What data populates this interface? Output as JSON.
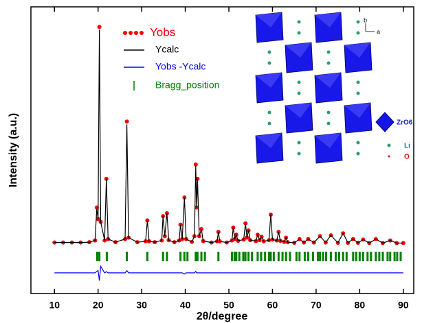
{
  "chart_data": {
    "type": "rietveld",
    "xlabel": "2θ/degree",
    "ylabel": "Intensity (a.u.)",
    "xlim": [
      4.6,
      92.4
    ],
    "ylim": [
      0,
      100
    ],
    "xticks": [
      10,
      20,
      30,
      40,
      50,
      60,
      70,
      80,
      90
    ],
    "x": [
      10,
      12,
      14,
      16,
      18,
      19.3,
      19.7,
      20.0,
      20.3,
      20.6,
      21.5,
      21.9,
      22.3,
      24,
      26.2,
      26.6,
      27.0,
      29,
      30.9,
      31.3,
      31.7,
      33,
      34.6,
      34.9,
      35.3,
      35.8,
      36.2,
      37.5,
      38.6,
      38.9,
      39.3,
      39.8,
      40.2,
      41.5,
      42.1,
      42.4,
      42.6,
      42.8,
      43.2,
      43.7,
      44.1,
      46,
      47.3,
      47.6,
      47.9,
      49.5,
      50.7,
      51.0,
      51.35,
      51.7,
      52.1,
      53.4,
      53.8,
      54.15,
      54.5,
      54.9,
      56.2,
      56.6,
      57.05,
      57.5,
      58,
      59.2,
      59.6,
      60,
      61.0,
      61.4,
      61.8,
      62.7,
      63.1,
      63.5,
      65,
      66.2,
      67.2,
      68.2,
      69.5,
      70.9,
      72.2,
      73.4,
      75,
      76.2,
      77.3,
      78.5,
      79.6,
      80.8,
      82.2,
      83.7,
      85.3,
      87.0,
      88.5,
      90
    ],
    "series": [
      {
        "name": "Yobs",
        "color": "#ff0000",
        "style": "dots",
        "values": [
          17.8,
          17.8,
          17.8,
          17.8,
          17.9,
          18.5,
          30,
          26,
          93,
          25,
          18.5,
          40,
          19,
          17.9,
          19,
          60,
          19.5,
          17.9,
          18.2,
          25.5,
          18.2,
          17.9,
          18.5,
          27,
          20,
          28,
          18.6,
          17.9,
          18.5,
          24,
          19,
          33.5,
          19,
          18,
          20,
          45,
          30,
          40,
          20,
          22.5,
          18.3,
          17.8,
          18.2,
          21.5,
          18.2,
          17.8,
          18.5,
          23,
          19,
          20.5,
          18.4,
          18.8,
          24.5,
          19.5,
          22,
          18.6,
          18.3,
          20.5,
          18.6,
          19.8,
          18.2,
          18.6,
          27.5,
          18.8,
          18.5,
          21.5,
          18.4,
          18,
          19.5,
          17.9,
          17.7,
          19,
          17.8,
          19,
          17.8,
          20,
          17.8,
          20.3,
          17.7,
          21,
          17.7,
          19,
          17.7,
          18.8,
          17.6,
          19,
          17.6,
          18.5,
          17.6,
          17.6
        ]
      },
      {
        "name": "Ycalc",
        "color": "#000000",
        "style": "line",
        "values": [
          17.8,
          17.8,
          17.8,
          17.8,
          17.9,
          18.5,
          29.5,
          26,
          92,
          25,
          18.5,
          40,
          19,
          17.9,
          19,
          59,
          19.5,
          17.9,
          18.2,
          25.5,
          18.2,
          17.9,
          18.5,
          27,
          20,
          28,
          18.6,
          17.9,
          18.5,
          24,
          19,
          33.5,
          19,
          18,
          20,
          44.5,
          30,
          40,
          20,
          22.5,
          18.3,
          17.8,
          18.2,
          21.5,
          18.2,
          17.8,
          18.5,
          23,
          19,
          20.5,
          18.4,
          18.8,
          24.5,
          19.5,
          22,
          18.6,
          18.3,
          20.5,
          18.6,
          19.8,
          18.2,
          18.6,
          27.5,
          18.8,
          18.5,
          21.5,
          18.4,
          18,
          19.5,
          17.9,
          17.7,
          19,
          17.8,
          19,
          17.8,
          20,
          17.8,
          20.3,
          17.7,
          21,
          17.7,
          19,
          17.7,
          18.8,
          17.6,
          19,
          17.6,
          18.5,
          17.6,
          17.6
        ]
      },
      {
        "name": "Yobs -Ycalc",
        "color": "#0000ff",
        "style": "line",
        "values": [
          7.2,
          7.2,
          7.2,
          7.2,
          7.2,
          7.2,
          7.7,
          8,
          4.5,
          9.5,
          7.2,
          7.6,
          7.2,
          7.2,
          7.2,
          8,
          7.2,
          7.2,
          7.2,
          7.2,
          7.2,
          7.2,
          7.2,
          7.2,
          7.2,
          7.2,
          7.2,
          7.2,
          7.2,
          7.2,
          7.2,
          6.8,
          7.2,
          7.2,
          7.2,
          7.7,
          7.2,
          7.2,
          7.2,
          7.2,
          7.2,
          7.2,
          7.2,
          7.2,
          7.2,
          7.2,
          7.2,
          7.2,
          7.2,
          7.2,
          7.2,
          7.2,
          7.2,
          7.2,
          7.2,
          7.2,
          7.2,
          7.2,
          7.2,
          7.2,
          7.2,
          7.2,
          7.2,
          7.2,
          7.2,
          7.2,
          7.2,
          7.2,
          7.2,
          7.2,
          7.2,
          7.2,
          7.2,
          7.2,
          7.2,
          7.2,
          7.2,
          7.2,
          7.2,
          7.2,
          7.2,
          7.2,
          7.2,
          7.2,
          7.2,
          7.2,
          7.2,
          7.2,
          7.2,
          7.2
        ]
      },
      {
        "name": "Bragg_position",
        "color": "#008000",
        "style": "bragg",
        "x": [
          19.8,
          20.3,
          22,
          26.6,
          31.3,
          34.9,
          35.8,
          38.9,
          39.8,
          40.5,
          42.4,
          42.8,
          43.7,
          44.5,
          47.6,
          50.7,
          51.3,
          51.7,
          52.4,
          53.3,
          53.8,
          54.5,
          55.3,
          56.6,
          57.4,
          58.3,
          59.2,
          59.6,
          60.3,
          61.4,
          62.3,
          63.1,
          64.0,
          65.5,
          66.2,
          67.4,
          68.2,
          69.3,
          70.4,
          70.9,
          71.6,
          72.3,
          73.4,
          74.5,
          75.3,
          76.2,
          77.0,
          78.5,
          79.2,
          80.0,
          80.8,
          81.8,
          82.6,
          83.7,
          84.5,
          85.3,
          86.4,
          87.0,
          88.0,
          88.6,
          89.4
        ]
      }
    ],
    "annotations": [
      "b",
      "a",
      "ZrO6",
      "Li",
      "O"
    ]
  }
}
